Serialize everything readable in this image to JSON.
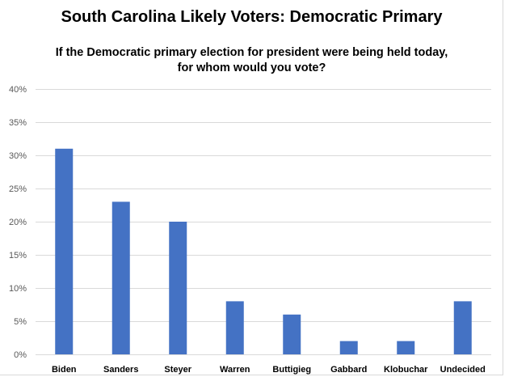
{
  "chart_data": {
    "type": "bar",
    "title": "South Carolina Likely Voters: Democratic Primary",
    "subtitle": [
      "If the Democratic primary election for president were being held today,",
      "for whom would you vote?"
    ],
    "categories": [
      "Biden",
      "Sanders",
      "Steyer",
      "Warren",
      "Buttigieg",
      "Gabbard",
      "Klobuchar",
      "Undecided"
    ],
    "values": [
      31,
      23,
      20,
      8,
      6,
      2,
      2,
      8
    ],
    "ylim": [
      0,
      40
    ],
    "yticks": [
      0,
      5,
      10,
      15,
      20,
      25,
      30,
      35,
      40
    ],
    "ytick_labels": [
      "0%",
      "5%",
      "10%",
      "15%",
      "20%",
      "25%",
      "30%",
      "35%",
      "40%"
    ],
    "xlabel": "",
    "ylabel": "",
    "grid": true,
    "legend": "none",
    "bar_color": "#4472C4",
    "grid_color": "#d9d9d9"
  }
}
